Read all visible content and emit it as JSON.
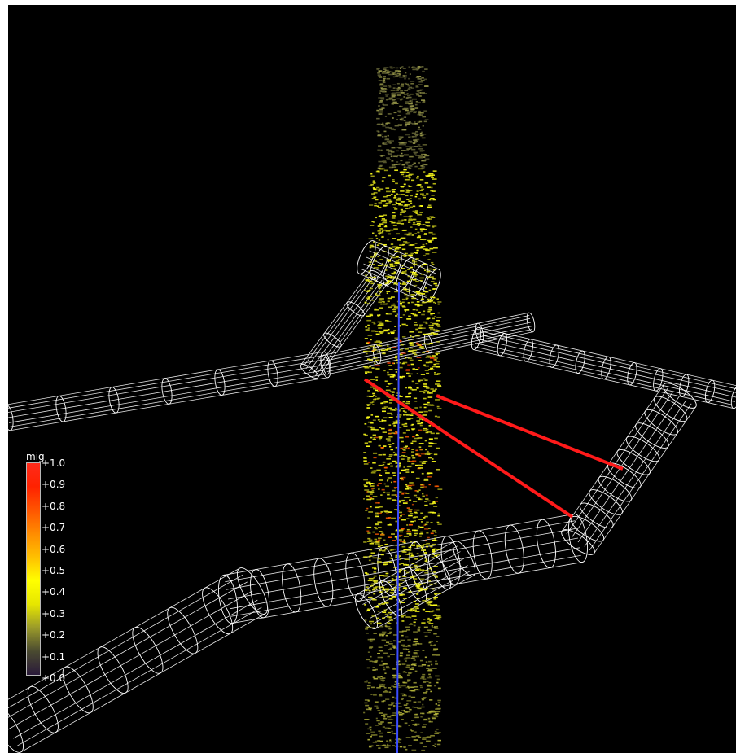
{
  "colorbar": {
    "title": "mig",
    "ticks": [
      "+1.0",
      "+0.9",
      "+0.8",
      "+0.7",
      "+0.6",
      "+0.5",
      "+0.4",
      "+0.3",
      "+0.2",
      "+0.1",
      "+0.0"
    ],
    "colors": [
      "#ff2a1a",
      "#ff2200",
      "#ff5500",
      "#ff8c00",
      "#ffc000",
      "#ffff00",
      "#e6e600",
      "#9a9a2a",
      "#4a4a30",
      "#2a1a3a"
    ]
  },
  "scene": {
    "background": "#000000",
    "wireframe_color": "#ffffff",
    "borehole_color": "#3b4dff",
    "ray_color": "#ff1a1a"
  }
}
